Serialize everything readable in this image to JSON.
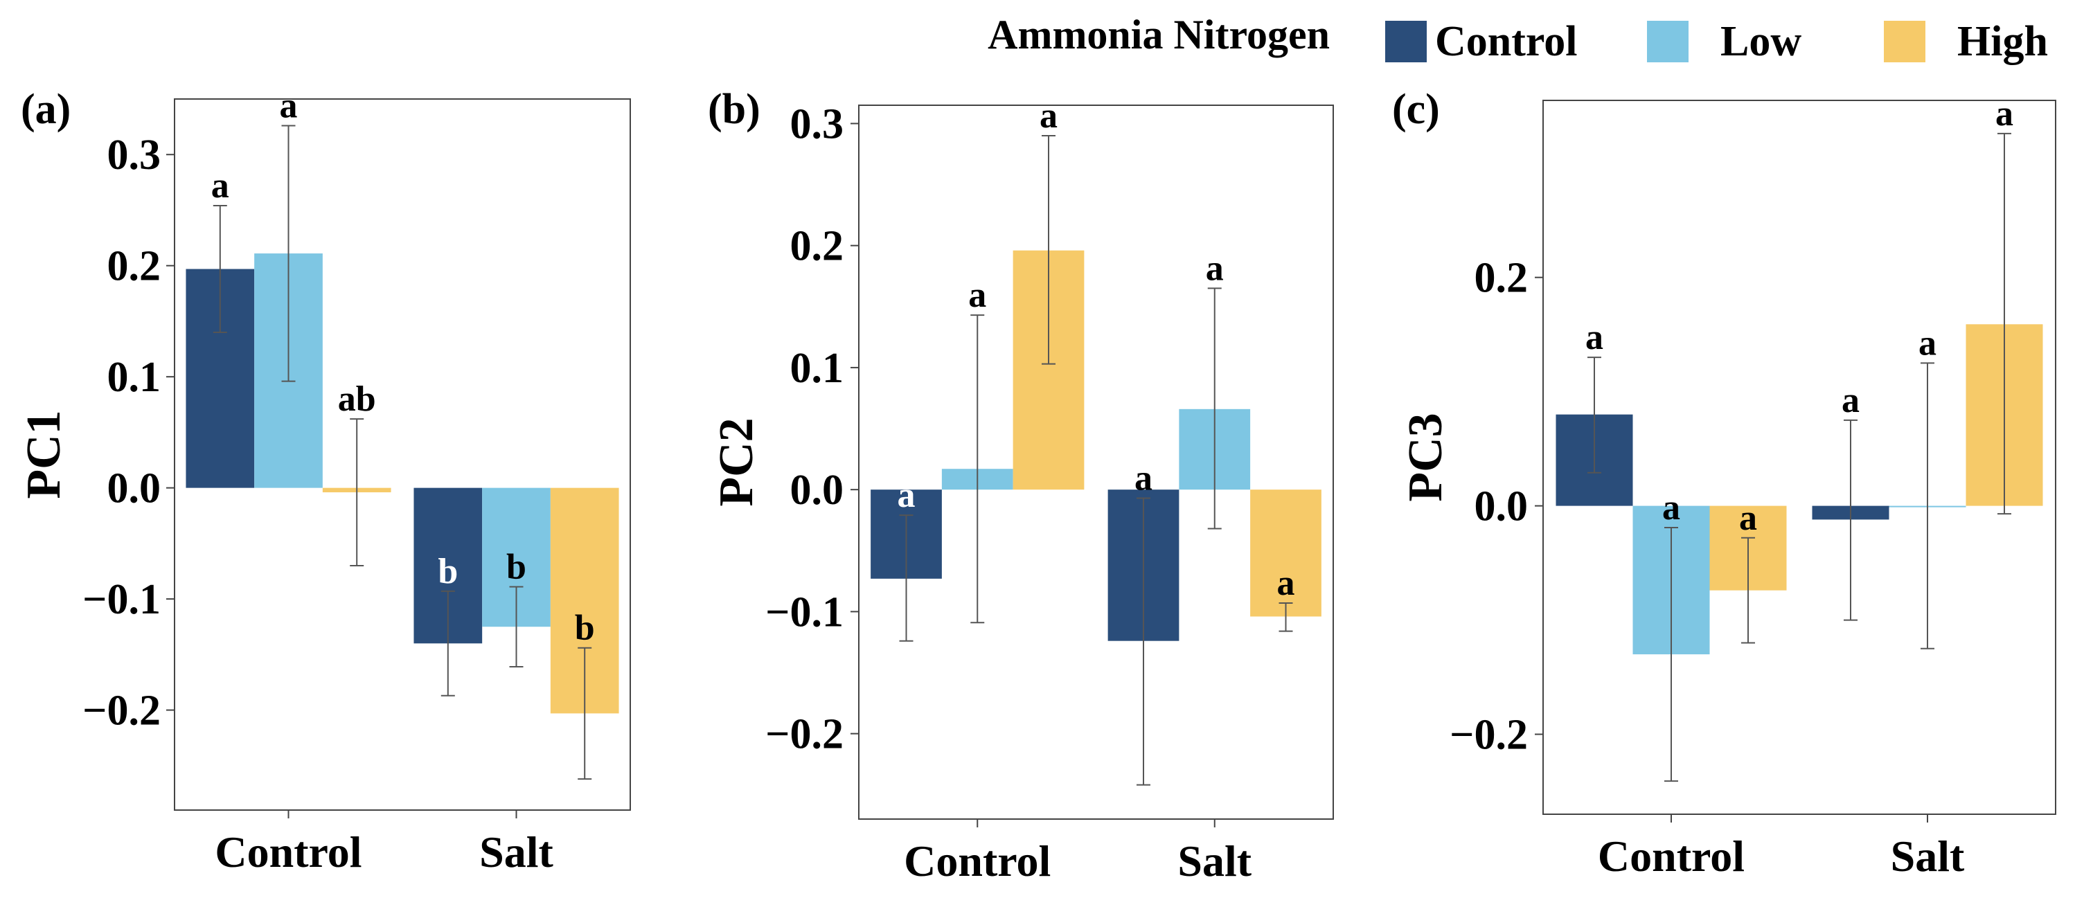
{
  "legend": {
    "title": "Ammonia Nitrogen",
    "items": [
      {
        "label": "Control",
        "color": "#2A4D7A"
      },
      {
        "label": "Low",
        "color": "#7EC6E3"
      },
      {
        "label": "High",
        "color": "#F6CA69"
      }
    ]
  },
  "chart_data": [
    {
      "type": "bar",
      "panel_label": "(a)",
      "ylabel": "PC1",
      "xlabel": "",
      "categories": [
        "Control",
        "Salt"
      ],
      "ylim": [
        -0.29,
        0.35
      ],
      "yticks": [
        0.3,
        0.2,
        0.1,
        0.0,
        -0.1,
        -0.2
      ],
      "ytick_labels": [
        "0.3",
        "0.2",
        "0.1",
        "0.0",
        "−0.1",
        "−0.2"
      ],
      "series": [
        {
          "name": "Control",
          "values": [
            0.197,
            -0.14
          ],
          "err_low": [
            0.14,
            -0.187
          ],
          "err_high": [
            0.254,
            -0.093
          ],
          "letters": [
            "a",
            "b"
          ],
          "letter_colors": [
            "#000000",
            "#ffffff"
          ]
        },
        {
          "name": "Low",
          "values": [
            0.211,
            -0.125
          ],
          "err_low": [
            0.096,
            -0.161
          ],
          "err_high": [
            0.326,
            -0.089
          ],
          "letters": [
            "a",
            "b"
          ],
          "letter_colors": [
            "#000000",
            "#000000"
          ]
        },
        {
          "name": "High",
          "values": [
            -0.004,
            -0.203
          ],
          "err_low": [
            -0.07,
            -0.262
          ],
          "err_high": [
            0.062,
            -0.144
          ],
          "letters": [
            "ab",
            "b"
          ],
          "letter_colors": [
            "#000000",
            "#000000"
          ]
        }
      ]
    },
    {
      "type": "bar",
      "panel_label": "(b)",
      "ylabel": "PC2",
      "xlabel": "",
      "categories": [
        "Control",
        "Salt"
      ],
      "ylim": [
        -0.27,
        0.315
      ],
      "yticks": [
        0.3,
        0.2,
        0.1,
        0.0,
        -0.1,
        -0.2
      ],
      "ytick_labels": [
        "0.3",
        "0.2",
        "0.1",
        "0.0",
        "−0.1",
        "−0.2"
      ],
      "series": [
        {
          "name": "Control",
          "values": [
            -0.073,
            -0.124
          ],
          "err_low": [
            -0.124,
            -0.242
          ],
          "err_high": [
            -0.021,
            -0.007
          ],
          "letters": [
            "a",
            "a"
          ],
          "letter_colors": [
            "#ffffff",
            "#000000"
          ]
        },
        {
          "name": "Low",
          "values": [
            0.017,
            0.066
          ],
          "err_low": [
            -0.109,
            -0.032
          ],
          "err_high": [
            0.143,
            0.165
          ],
          "letters": [
            "a",
            "a"
          ],
          "letter_colors": [
            "#000000",
            "#000000"
          ]
        },
        {
          "name": "High",
          "values": [
            0.196,
            -0.104
          ],
          "err_low": [
            0.103,
            -0.116
          ],
          "err_high": [
            0.29,
            -0.093
          ],
          "letters": [
            "a",
            "a"
          ],
          "letter_colors": [
            "#000000",
            "#000000"
          ]
        }
      ]
    },
    {
      "type": "bar",
      "panel_label": "(c)",
      "ylabel": "PC3",
      "xlabel": "",
      "categories": [
        "Control",
        "Salt"
      ],
      "ylim": [
        -0.27,
        0.355
      ],
      "yticks": [
        0.2,
        0.0,
        -0.2
      ],
      "ytick_labels": [
        "0.2",
        "0.0",
        "−0.2"
      ],
      "series": [
        {
          "name": "Control",
          "values": [
            0.08,
            -0.012
          ],
          "err_low": [
            0.029,
            -0.1
          ],
          "err_high": [
            0.13,
            0.075
          ],
          "letters": [
            "a",
            "a"
          ],
          "letter_colors": [
            "#000000",
            "#000000"
          ]
        },
        {
          "name": "Low",
          "values": [
            -0.13,
            0.0
          ],
          "err_low": [
            -0.241,
            -0.125
          ],
          "err_high": [
            -0.019,
            0.125
          ],
          "letters": [
            "a",
            "a"
          ],
          "letter_colors": [
            "#000000",
            "#000000"
          ]
        },
        {
          "name": "High",
          "values": [
            -0.074,
            0.159
          ],
          "err_low": [
            -0.12,
            -0.007
          ],
          "err_high": [
            -0.028,
            0.326
          ],
          "letters": [
            "a",
            "a"
          ],
          "letter_colors": [
            "#000000",
            "#000000"
          ]
        }
      ]
    }
  ]
}
